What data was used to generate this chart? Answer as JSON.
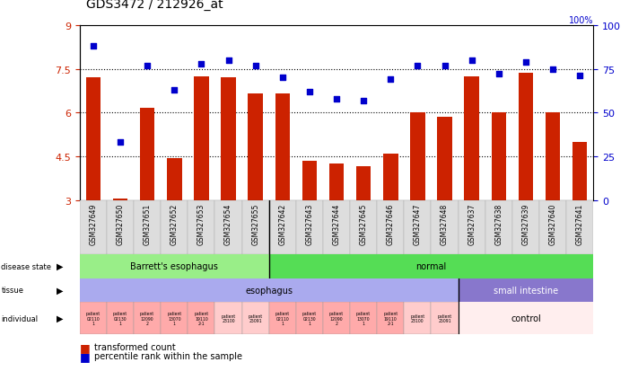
{
  "title": "GDS3472 / 212926_at",
  "samples": [
    "GSM327649",
    "GSM327650",
    "GSM327651",
    "GSM327652",
    "GSM327653",
    "GSM327654",
    "GSM327655",
    "GSM327642",
    "GSM327643",
    "GSM327644",
    "GSM327645",
    "GSM327646",
    "GSM327647",
    "GSM327648",
    "GSM327637",
    "GSM327638",
    "GSM327639",
    "GSM327640",
    "GSM327641"
  ],
  "bar_values": [
    7.2,
    3.05,
    6.15,
    4.45,
    7.25,
    7.2,
    6.65,
    6.65,
    4.35,
    4.25,
    4.15,
    4.6,
    6.0,
    5.85,
    7.25,
    6.0,
    7.35,
    6.0,
    5.0
  ],
  "dot_values": [
    88,
    33,
    77,
    63,
    78,
    80,
    77,
    70,
    62,
    58,
    57,
    69,
    77,
    77,
    80,
    72,
    79,
    75,
    71
  ],
  "ylim_left": [
    3,
    9
  ],
  "ylim_right": [
    0,
    100
  ],
  "yticks_left": [
    3,
    4.5,
    6,
    7.5,
    9
  ],
  "yticks_right": [
    0,
    25,
    50,
    75,
    100
  ],
  "bar_color": "#cc2200",
  "dot_color": "#0000cc",
  "dot_marker": "s",
  "dot_size": 18,
  "bar_width": 0.55,
  "disease_state_colors": [
    "#99ee88",
    "#55dd55"
  ],
  "tissue_color_esophagus": "#aaaaee",
  "tissue_color_small": "#8877cc",
  "individual_color_pink": "#ffaaaa",
  "individual_color_light": "#ffcccc",
  "individual_color_control": "#ffeeee",
  "legend_bar_label": "transformed count",
  "legend_dot_label": "percentile rank within the sample",
  "right_yaxis_color": "#0000cc",
  "left_yaxis_color": "#cc2200",
  "separator_col": 7,
  "tissue_separator_col": 14,
  "plot_bg": "#ffffff",
  "xticklabels_bg": "#dddddd",
  "hline_vals": [
    4.5,
    6.0,
    7.5
  ]
}
